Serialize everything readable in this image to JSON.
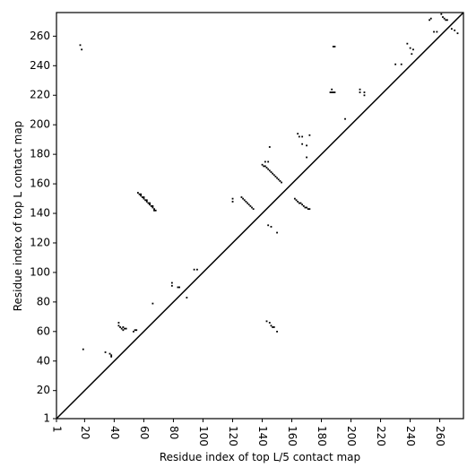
{
  "chart_data": {
    "type": "scatter",
    "xlabel": "Residue index of top L/5 contact map",
    "ylabel": "Residue index of top L contact map",
    "xlim": [
      1,
      276
    ],
    "ylim": [
      1,
      276
    ],
    "xticks": [
      1,
      20,
      40,
      60,
      80,
      100,
      120,
      140,
      160,
      180,
      200,
      220,
      240,
      260
    ],
    "yticks": [
      1,
      20,
      40,
      60,
      80,
      100,
      120,
      140,
      160,
      180,
      200,
      220,
      240,
      260
    ],
    "color": "#000000",
    "diagonal": true,
    "x": [
      56,
      57,
      58,
      59,
      60,
      61,
      62,
      63,
      64,
      65,
      66,
      67,
      68,
      58,
      60,
      62,
      64,
      66,
      67,
      126,
      127,
      128,
      129,
      130,
      131,
      132,
      133,
      134,
      140,
      141,
      142,
      143,
      144,
      145,
      146,
      147,
      148,
      149,
      150,
      151,
      152,
      153,
      142,
      144,
      145,
      162,
      163,
      164,
      165,
      166,
      167,
      168,
      169,
      170,
      171,
      172,
      164,
      165,
      167,
      172,
      167,
      170,
      170,
      186,
      187,
      188,
      189,
      187,
      188,
      189,
      206,
      206,
      209,
      209,
      196,
      230,
      234,
      238,
      240,
      242,
      241,
      253,
      254,
      256,
      258,
      261,
      262,
      263,
      264,
      265,
      268,
      270,
      272,
      17,
      18,
      120,
      120,
      144,
      146,
      150,
      43,
      43,
      44,
      45,
      46,
      47,
      48,
      46,
      34,
      37,
      38,
      38,
      53,
      54,
      55,
      19,
      66,
      79,
      79,
      83,
      84,
      89,
      94,
      96,
      143,
      145,
      146,
      147,
      148,
      150
    ],
    "values": [
      154,
      153,
      152,
      151,
      150,
      149,
      148,
      147,
      146,
      145,
      144,
      143,
      142,
      153,
      151,
      149,
      147,
      145,
      142,
      151,
      150,
      149,
      148,
      147,
      146,
      145,
      144,
      143,
      173,
      172,
      172,
      171,
      170,
      169,
      168,
      167,
      166,
      165,
      164,
      163,
      162,
      161,
      175,
      175,
      185,
      150,
      149,
      148,
      147,
      147,
      146,
      145,
      144,
      144,
      143,
      143,
      194,
      192,
      192,
      193,
      187,
      186,
      178,
      222,
      222,
      222,
      222,
      224,
      253,
      253,
      222,
      224,
      222,
      220,
      204,
      241,
      241,
      255,
      252,
      251,
      248,
      271,
      272,
      263,
      263,
      275,
      273,
      272,
      271,
      271,
      265,
      264,
      262,
      254,
      251,
      150,
      148,
      132,
      131,
      127,
      66,
      64,
      63,
      62,
      61,
      62,
      62,
      63,
      46,
      45,
      44,
      43,
      60,
      61,
      61,
      48,
      79,
      93,
      91,
      90,
      90,
      83,
      102,
      102,
      67,
      66,
      64,
      63,
      63,
      60
    ]
  }
}
